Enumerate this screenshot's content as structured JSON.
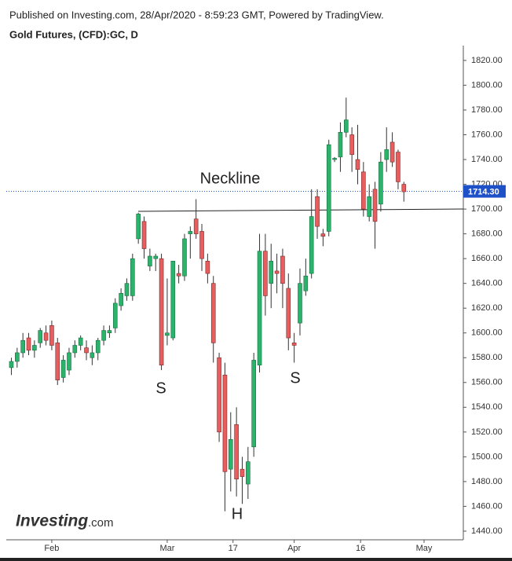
{
  "header": {
    "published": "Published on Investing.com, 28/Apr/2020 - 8:59:23 GMT, Powered by TradingView.",
    "logo_main": "Investing",
    "logo_suffix": ".com"
  },
  "chart_data": {
    "type": "candlestick",
    "title": "Gold Futures, (CFD):GC, D",
    "x": [
      0,
      1,
      2,
      3,
      4,
      5,
      6,
      7,
      8,
      9,
      10,
      11,
      12,
      13,
      14,
      15,
      16,
      17,
      18,
      19,
      20,
      21,
      22,
      23,
      24,
      25,
      26,
      27,
      28,
      29,
      30,
      31,
      32,
      33,
      34,
      35,
      36,
      37,
      38,
      39,
      40,
      41,
      42,
      43,
      44,
      45,
      46,
      47,
      48,
      49,
      50,
      51,
      52,
      53,
      54,
      55,
      56,
      57,
      58,
      59,
      60,
      61,
      62,
      63,
      64,
      65,
      66,
      67,
      68
    ],
    "open": [
      1572,
      1577,
      1584,
      1596,
      1586,
      1592,
      1600,
      1606,
      1592,
      1564,
      1570,
      1584,
      1590,
      1588,
      1580,
      1584,
      1594,
      1600,
      1604,
      1622,
      1630,
      1630,
      1676,
      1690,
      1654,
      1660,
      1660,
      1598,
      1596,
      1648,
      1646,
      1680,
      1692,
      1682,
      1658,
      1640,
      1580,
      1566,
      1490,
      1526,
      1490,
      1478,
      1508,
      1574,
      1666,
      1640,
      1650,
      1662,
      1636,
      1592,
      1608,
      1634,
      1648,
      1710,
      1680,
      1682,
      1740,
      1742,
      1762,
      1760,
      1740,
      1730,
      1694,
      1716,
      1704,
      1740,
      1754,
      1746,
      1720
    ],
    "high": [
      1580,
      1588,
      1600,
      1600,
      1594,
      1604,
      1606,
      1610,
      1596,
      1582,
      1588,
      1594,
      1598,
      1594,
      1590,
      1596,
      1606,
      1606,
      1628,
      1636,
      1644,
      1664,
      1697,
      1694,
      1668,
      1664,
      1664,
      1644,
      1658,
      1655,
      1680,
      1686,
      1708,
      1688,
      1664,
      1646,
      1584,
      1576,
      1536,
      1540,
      1500,
      1508,
      1584,
      1680,
      1680,
      1672,
      1664,
      1668,
      1648,
      1600,
      1652,
      1660,
      1716,
      1716,
      1684,
      1756,
      1742,
      1770,
      1790,
      1766,
      1768,
      1738,
      1720,
      1722,
      1746,
      1766,
      1762,
      1748,
      1722
    ],
    "low": [
      1566,
      1572,
      1580,
      1582,
      1580,
      1588,
      1590,
      1586,
      1558,
      1560,
      1566,
      1580,
      1586,
      1578,
      1574,
      1578,
      1590,
      1596,
      1600,
      1618,
      1626,
      1626,
      1672,
      1660,
      1650,
      1650,
      1570,
      1590,
      1594,
      1640,
      1642,
      1660,
      1676,
      1650,
      1640,
      1576,
      1512,
      1456,
      1472,
      1468,
      1462,
      1466,
      1500,
      1568,
      1614,
      1620,
      1632,
      1620,
      1586,
      1576,
      1598,
      1630,
      1644,
      1676,
      1670,
      1678,
      1738,
      1730,
      1758,
      1730,
      1720,
      1694,
      1690,
      1668,
      1698,
      1730,
      1734,
      1716,
      1706
    ],
    "close": [
      1577,
      1584,
      1594,
      1586,
      1590,
      1602,
      1594,
      1590,
      1562,
      1578,
      1584,
      1590,
      1596,
      1584,
      1584,
      1594,
      1602,
      1602,
      1624,
      1632,
      1640,
      1660,
      1696,
      1668,
      1662,
      1662,
      1574,
      1600,
      1658,
      1646,
      1676,
      1682,
      1680,
      1660,
      1648,
      1592,
      1520,
      1488,
      1514,
      1482,
      1484,
      1496,
      1578,
      1666,
      1630,
      1658,
      1648,
      1640,
      1596,
      1590,
      1640,
      1646,
      1694,
      1686,
      1678,
      1752,
      1741,
      1762,
      1772,
      1744,
      1732,
      1700,
      1710,
      1690,
      1738,
      1748,
      1738,
      1722,
      1714
    ],
    "up_color": "#2bb36b",
    "down_color": "#e85d5d",
    "xlim": [
      -0.88,
      78.3
    ],
    "xticks": [
      {
        "value": 7,
        "label": "Feb"
      },
      {
        "value": 27,
        "label": "Mar"
      },
      {
        "value": 38.4,
        "label": "17"
      },
      {
        "value": 49,
        "label": "Apr"
      },
      {
        "value": 60.5,
        "label": "16"
      },
      {
        "value": 71.5,
        "label": "May"
      }
    ],
    "ylim": [
      1433,
      1832
    ],
    "yticks": [
      {
        "value": 1440,
        "label": "1440.00"
      },
      {
        "value": 1460,
        "label": "1460.00"
      },
      {
        "value": 1480,
        "label": "1480.00"
      },
      {
        "value": 1500,
        "label": "1500.00"
      },
      {
        "value": 1520,
        "label": "1520.00"
      },
      {
        "value": 1540,
        "label": "1540.00"
      },
      {
        "value": 1560,
        "label": "1560.00"
      },
      {
        "value": 1580,
        "label": "1580.00"
      },
      {
        "value": 1600,
        "label": "1600.00"
      },
      {
        "value": 1620,
        "label": "1620.00"
      },
      {
        "value": 1640,
        "label": "1640.00"
      },
      {
        "value": 1660,
        "label": "1660.00"
      },
      {
        "value": 1680,
        "label": "1680.00"
      },
      {
        "value": 1700,
        "label": "1700.00"
      },
      {
        "value": 1720,
        "label": "1720.00"
      },
      {
        "value": 1740,
        "label": "1740.00"
      },
      {
        "value": 1760,
        "label": "1760.00"
      },
      {
        "value": 1780,
        "label": "1780.00"
      },
      {
        "value": 1800,
        "label": "1800.00"
      },
      {
        "value": 1820,
        "label": "1820.00"
      }
    ],
    "last_price": {
      "value": 1714.3,
      "label": "1714.30"
    },
    "last_price_color": "#1e50c8",
    "annotations": [
      "Neckline",
      "S",
      "H",
      "S"
    ]
  }
}
